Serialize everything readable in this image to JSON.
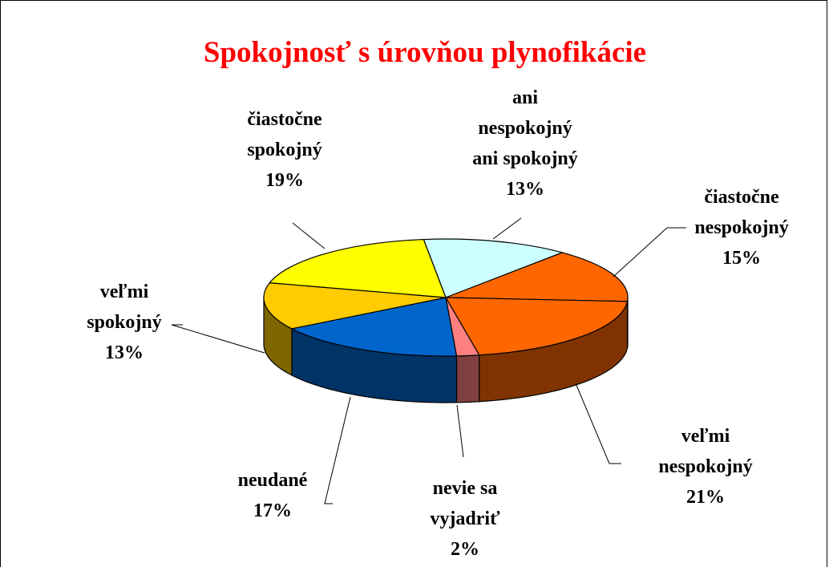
{
  "chart_data": {
    "type": "pie",
    "title": "Spokojnosť s úrovňou plynofikácie",
    "categories": [
      "ani\nnespokojný\nani spokojný",
      "čiastočne\nnespokojný",
      "veľmi\nnespokojný",
      "nevie sa\nvyjadriť",
      "neudané",
      "veľmi\nspokojný",
      "čiastočne\nspokojný"
    ],
    "values": [
      13,
      15,
      21,
      2,
      17,
      13,
      19
    ],
    "value_labels": [
      "13%",
      "15%",
      "21%",
      "2%",
      "17%",
      "13%",
      "19%"
    ],
    "colors": [
      "#ccffff",
      "#ff6600",
      "#ff6600",
      "#ff8080",
      "#0066cc",
      "#ffcc00",
      "#ffff00"
    ]
  }
}
